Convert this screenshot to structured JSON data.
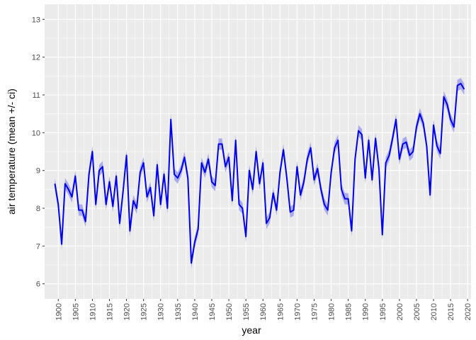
{
  "chart_data": {
    "type": "line",
    "title": "",
    "xlabel": "year",
    "ylabel": "air temperature (mean +/- ci)",
    "xlim": [
      1896,
      2021
    ],
    "ylim": [
      5.6,
      13.4
    ],
    "x_ticks": [
      "1900",
      "1905",
      "1910",
      "1915",
      "1920",
      "1925",
      "1930",
      "1935",
      "1940",
      "1945",
      "1950",
      "1955",
      "1960",
      "1965",
      "1970",
      "1975",
      "1980",
      "1985",
      "1990",
      "1995",
      "2000",
      "2005",
      "2010",
      "2015",
      "2020"
    ],
    "y_ticks": [
      "6",
      "7",
      "8",
      "9",
      "10",
      "11",
      "12",
      "13"
    ],
    "grid": true,
    "legend": "none",
    "colors": {
      "panel": "#ebebeb",
      "grid_major": "#ffffff",
      "line": "#0000ee",
      "ribbon": "#aaaaf0"
    },
    "series": [
      {
        "x": [
          1899,
          1900,
          1901,
          1902,
          1903,
          1904,
          1905,
          1906,
          1907,
          1908,
          1909,
          1910,
          1911,
          1912,
          1913,
          1914,
          1915,
          1916,
          1917,
          1918,
          1919,
          1920,
          1921,
          1922,
          1923,
          1924,
          1925,
          1926,
          1927,
          1928,
          1929,
          1930,
          1931,
          1932,
          1933,
          1934,
          1935,
          1936,
          1937,
          1938,
          1939,
          1940,
          1941,
          1942,
          1943,
          1944,
          1945,
          1946,
          1947,
          1948,
          1949,
          1950,
          1951,
          1952,
          1953,
          1954,
          1955,
          1956,
          1957,
          1958,
          1959,
          1960,
          1961,
          1962,
          1963,
          1964,
          1965,
          1966,
          1967,
          1968,
          1969,
          1970,
          1971,
          1972,
          1973,
          1974,
          1975,
          1976,
          1977,
          1978,
          1979,
          1980,
          1981,
          1982,
          1983,
          1984,
          1985,
          1986,
          1987,
          1988,
          1989,
          1990,
          1991,
          1992,
          1993,
          1994,
          1995,
          1996,
          1997,
          1998,
          1999,
          2000,
          2001,
          2002,
          2003,
          2004,
          2005,
          2006,
          2007,
          2008,
          2009,
          2010,
          2011,
          2012,
          2013,
          2014,
          2015,
          2016,
          2017,
          2018,
          2019
        ],
        "values": [
          8.65,
          8.1,
          7.05,
          8.65,
          8.5,
          8.3,
          8.85,
          7.95,
          7.95,
          7.65,
          8.9,
          9.5,
          8.1,
          9.0,
          9.1,
          8.1,
          8.7,
          8.05,
          8.85,
          7.6,
          8.45,
          9.4,
          7.4,
          8.2,
          8.0,
          8.95,
          9.2,
          8.3,
          8.55,
          7.8,
          9.15,
          8.1,
          8.9,
          8.0,
          10.35,
          8.9,
          8.8,
          9.0,
          9.35,
          8.8,
          6.55,
          7.1,
          7.45,
          9.2,
          8.95,
          9.3,
          8.7,
          8.6,
          9.7,
          9.7,
          9.1,
          9.35,
          8.2,
          9.8,
          8.1,
          8.0,
          7.25,
          9.0,
          8.5,
          9.5,
          8.65,
          9.2,
          7.6,
          7.75,
          8.4,
          7.95,
          8.95,
          9.55,
          8.8,
          7.9,
          7.95,
          9.1,
          8.35,
          8.7,
          9.3,
          9.6,
          8.75,
          9.05,
          8.5,
          8.1,
          7.95,
          8.95,
          9.6,
          9.8,
          8.5,
          8.25,
          8.25,
          7.4,
          9.3,
          10.05,
          9.95,
          8.8,
          9.8,
          8.75,
          9.85,
          9.05,
          7.3,
          9.2,
          9.4,
          9.85,
          10.35,
          9.3,
          9.7,
          9.75,
          9.4,
          9.5,
          10.15,
          10.5,
          10.25,
          9.65,
          8.35,
          10.2,
          9.65,
          9.45,
          10.95,
          10.75,
          10.35,
          10.15,
          11.25,
          11.3,
          11.15
        ],
        "ci": 0.15
      }
    ]
  }
}
